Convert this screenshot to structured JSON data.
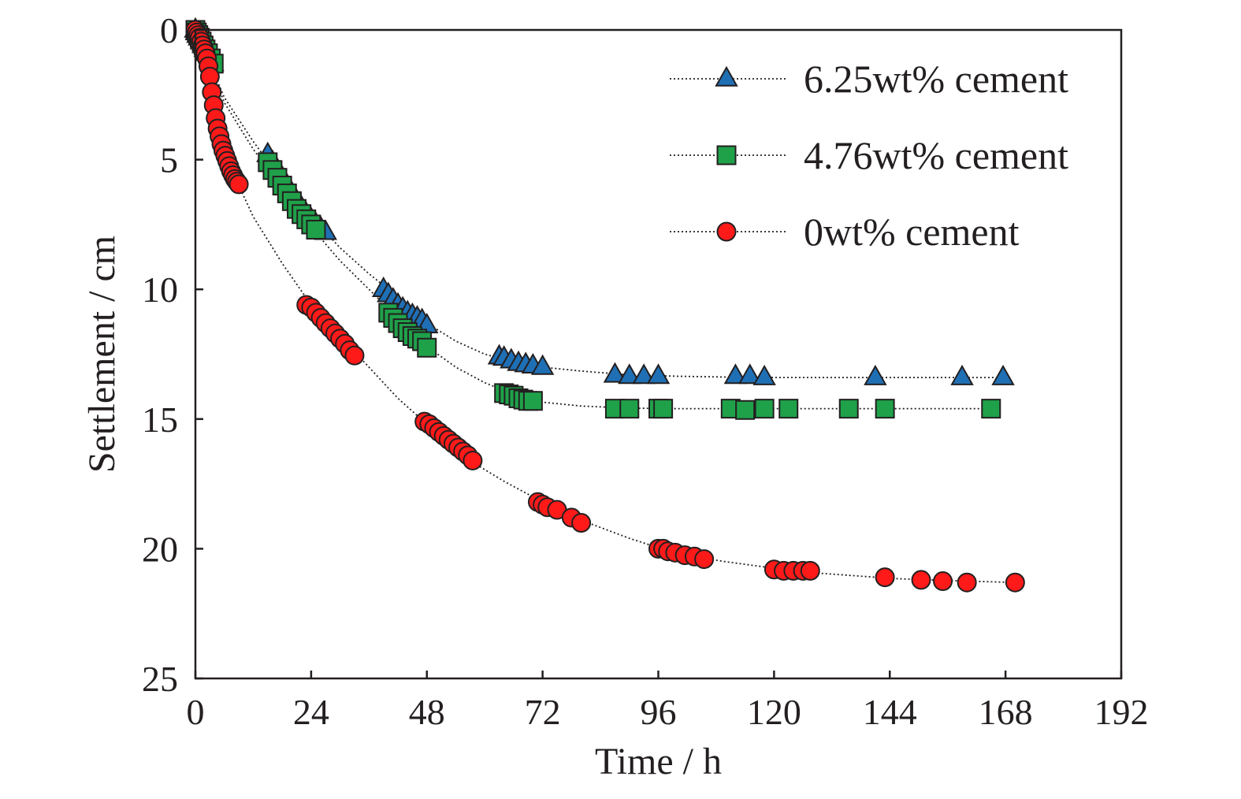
{
  "chart_data": {
    "type": "scatter",
    "title": "",
    "xlabel": "Time / h",
    "ylabel": "Settlement / cm",
    "xlim": [
      0,
      192
    ],
    "ylim": [
      0,
      25
    ],
    "y_inverted": true,
    "x_ticks": [
      0,
      24,
      48,
      72,
      96,
      120,
      144,
      168,
      192
    ],
    "y_ticks": [
      0,
      5,
      10,
      15,
      20,
      25
    ],
    "grid": false,
    "legend_position": "top-right",
    "series": [
      {
        "name": "6.25wt% cement",
        "marker": "triangle",
        "color": "#1f6fb5",
        "x": [
          0.0,
          0.2,
          0.5,
          0.8,
          1.2,
          1.6,
          2.0,
          2.4,
          3.0,
          3.6,
          15.0,
          16.0,
          17.0,
          18.0,
          19.0,
          20.0,
          21.0,
          22.0,
          23.0,
          24.0,
          25.0,
          26.0,
          27.0,
          39.0,
          40.0,
          41.0,
          42.0,
          43.0,
          44.0,
          45.0,
          46.0,
          47.0,
          48.0,
          63.0,
          64.0,
          65.5,
          67.0,
          68.5,
          70.0,
          72.0,
          87.0,
          90.0,
          93.0,
          96.0,
          112.0,
          115.0,
          118.0,
          141.0,
          159.0,
          167.5
        ],
        "y": [
          0.0,
          0.1,
          0.2,
          0.3,
          0.45,
          0.6,
          0.75,
          0.9,
          1.1,
          1.3,
          4.8,
          5.1,
          5.4,
          5.7,
          6.0,
          6.3,
          6.6,
          6.85,
          7.1,
          7.3,
          7.5,
          7.65,
          7.8,
          10.0,
          10.2,
          10.4,
          10.6,
          10.75,
          10.9,
          11.0,
          11.1,
          11.2,
          11.4,
          12.6,
          12.65,
          12.75,
          12.85,
          12.9,
          12.95,
          13.0,
          13.3,
          13.35,
          13.35,
          13.35,
          13.35,
          13.35,
          13.4,
          13.4,
          13.4,
          13.4
        ]
      },
      {
        "name": "4.76wt% cement",
        "marker": "square",
        "color": "#1fa14a",
        "x": [
          0.0,
          0.3,
          0.6,
          0.9,
          1.3,
          1.7,
          2.1,
          2.6,
          3.2,
          3.8,
          15.0,
          16.0,
          17.0,
          18.0,
          19.0,
          20.0,
          21.0,
          22.0,
          23.0,
          24.0,
          25.0,
          40.0,
          41.0,
          42.0,
          43.0,
          44.0,
          45.0,
          46.0,
          47.0,
          48.0,
          64.0,
          65.0,
          66.0,
          67.0,
          68.0,
          69.0,
          70.0,
          87.0,
          90.0,
          96.0,
          97.0,
          111.0,
          114.0,
          118.0,
          123.0,
          135.5,
          143.0,
          165.0
        ],
        "y": [
          0.0,
          0.1,
          0.2,
          0.3,
          0.45,
          0.6,
          0.75,
          0.9,
          1.1,
          1.3,
          5.1,
          5.4,
          5.7,
          6.0,
          6.3,
          6.6,
          6.9,
          7.1,
          7.3,
          7.5,
          7.7,
          10.9,
          11.1,
          11.3,
          11.5,
          11.65,
          11.8,
          11.9,
          12.0,
          12.25,
          14.0,
          14.05,
          14.1,
          14.2,
          14.25,
          14.3,
          14.3,
          14.6,
          14.6,
          14.6,
          14.6,
          14.6,
          14.65,
          14.6,
          14.6,
          14.6,
          14.6,
          14.6
        ]
      },
      {
        "name": "0wt% cement",
        "marker": "circle",
        "color": "#ff1a1a",
        "x": [
          0.0,
          0.3,
          0.6,
          0.9,
          1.2,
          1.5,
          1.8,
          2.1,
          2.4,
          2.7,
          3.0,
          3.4,
          3.8,
          4.2,
          4.6,
          5.0,
          5.4,
          5.8,
          6.2,
          6.6,
          7.0,
          7.4,
          7.8,
          8.2,
          8.6,
          9.0,
          23.0,
          24.0,
          25.0,
          26.0,
          27.0,
          28.0,
          29.0,
          30.0,
          31.0,
          32.0,
          33.0,
          47.5,
          48.5,
          49.5,
          50.5,
          51.5,
          52.5,
          53.5,
          54.5,
          55.5,
          56.5,
          57.5,
          71.0,
          72.0,
          73.0,
          75.0,
          78.0,
          80.0,
          96.0,
          97.0,
          98.0,
          99.5,
          101.5,
          103.5,
          105.5,
          120.0,
          122.0,
          124.0,
          126.0,
          127.5,
          143.0,
          150.5,
          155.0,
          160.0,
          170.0
        ],
        "y": [
          0.0,
          0.1,
          0.2,
          0.3,
          0.45,
          0.6,
          0.75,
          0.9,
          1.1,
          1.4,
          1.8,
          2.4,
          2.9,
          3.4,
          3.8,
          4.1,
          4.4,
          4.65,
          4.85,
          5.05,
          5.25,
          5.45,
          5.6,
          5.75,
          5.85,
          5.95,
          10.6,
          10.7,
          10.9,
          11.1,
          11.3,
          11.5,
          11.7,
          11.9,
          12.1,
          12.35,
          12.55,
          15.1,
          15.2,
          15.35,
          15.5,
          15.65,
          15.8,
          15.95,
          16.1,
          16.25,
          16.4,
          16.6,
          18.2,
          18.3,
          18.4,
          18.5,
          18.8,
          19.0,
          20.0,
          20.0,
          20.1,
          20.15,
          20.25,
          20.3,
          20.4,
          20.8,
          20.85,
          20.85,
          20.85,
          20.85,
          21.1,
          21.2,
          21.25,
          21.3,
          21.3
        ]
      }
    ],
    "fit_lines": [
      {
        "series": "6.25wt% cement",
        "style": "dotted",
        "x": [
          0,
          6,
          12,
          18,
          24,
          30,
          36,
          42,
          48,
          54,
          60,
          66,
          72,
          80,
          90,
          100,
          110,
          120,
          130,
          145,
          160,
          168
        ],
        "y": [
          0,
          2.6,
          4.3,
          5.8,
          7.2,
          8.4,
          9.4,
          10.3,
          11.3,
          12.0,
          12.5,
          12.8,
          13.0,
          13.15,
          13.3,
          13.35,
          13.38,
          13.4,
          13.4,
          13.4,
          13.4,
          13.4
        ]
      },
      {
        "series": "4.76wt% cement",
        "style": "dotted",
        "x": [
          0,
          6,
          12,
          18,
          24,
          30,
          36,
          42,
          48,
          54,
          60,
          66,
          72,
          80,
          90,
          100,
          110,
          120,
          130,
          145,
          160,
          165
        ],
        "y": [
          0,
          2.8,
          4.6,
          6.1,
          7.6,
          8.9,
          10.0,
          11.1,
          12.2,
          13.0,
          13.6,
          14.05,
          14.35,
          14.5,
          14.58,
          14.6,
          14.6,
          14.6,
          14.6,
          14.6,
          14.6,
          14.6
        ]
      },
      {
        "series": "0wt% cement",
        "style": "dotted",
        "x": [
          0,
          3,
          6,
          9,
          12,
          18,
          24,
          30,
          36,
          42,
          48,
          56,
          64,
          72,
          80,
          90,
          100,
          110,
          120,
          130,
          145,
          160,
          170
        ],
        "y": [
          0,
          2.0,
          4.4,
          6.0,
          7.2,
          9.0,
          10.6,
          11.8,
          13.0,
          14.2,
          15.2,
          16.5,
          17.4,
          18.2,
          18.9,
          19.6,
          20.2,
          20.5,
          20.75,
          20.95,
          21.15,
          21.25,
          21.3
        ]
      }
    ]
  }
}
